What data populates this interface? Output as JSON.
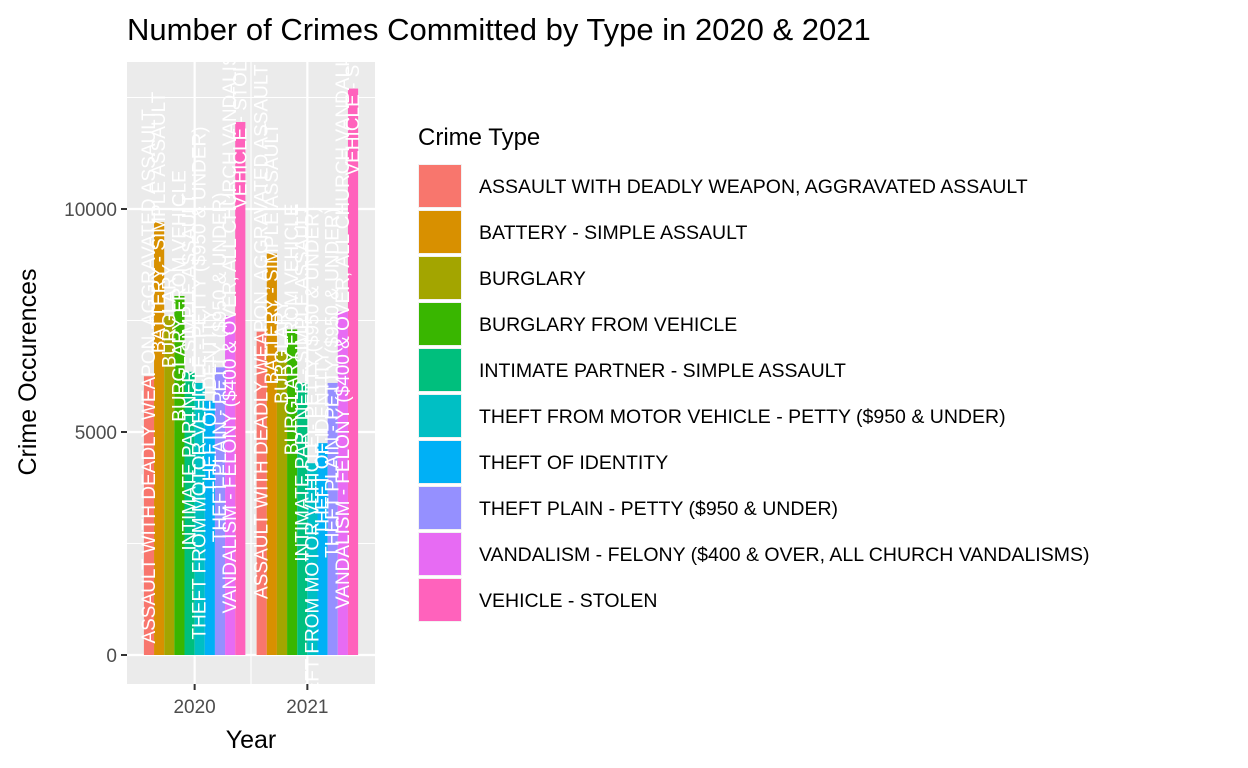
{
  "chart_data": {
    "type": "bar",
    "title": "Number of Crimes Committed by Type in 2020 & 2021",
    "xlabel": "Year",
    "ylabel": "Crime Occurences",
    "categories": [
      "2020",
      "2021"
    ],
    "ylim": [
      -600,
      13000
    ],
    "yticks": [
      0,
      5000,
      10000
    ],
    "grid": true,
    "legend_title": "Crime Type",
    "legend_position": "right",
    "series": [
      {
        "name": "ASSAULT WITH DEADLY WEAPON, AGGRAVATED ASSAULT",
        "color": "#F8766D",
        "values": [
          6250,
          7250
        ]
      },
      {
        "name": "BATTERY - SIMPLE ASSAULT",
        "color": "#D89000",
        "values": [
          9700,
          9000
        ]
      },
      {
        "name": "BURGLARY",
        "color": "#A3A500",
        "values": [
          7600,
          6800
        ]
      },
      {
        "name": "BURGLARY FROM VEHICLE",
        "color": "#39B600",
        "values": [
          8050,
          7300
        ]
      },
      {
        "name": "INTIMATE PARTNER - SIMPLE ASSAULT",
        "color": "#00BF7D",
        "values": [
          6350,
          6100
        ]
      },
      {
        "name": "THEFT FROM MOTOR VEHICLE - PETTY ($950 & UNDER)",
        "color": "#00BFC4",
        "values": [
          6100,
          4300
        ]
      },
      {
        "name": "THEFT OF IDENTITY",
        "color": "#00B0F6",
        "values": [
          5700,
          4750
        ]
      },
      {
        "name": "THEFT PLAIN - PETTY ($950 & UNDER)",
        "color": "#9590FF",
        "values": [
          6450,
          6100
        ]
      },
      {
        "name": "VANDALISM - FELONY ($400 & OVER, ALL CHURCH VANDALISMS)",
        "color": "#E76BF3",
        "values": [
          7600,
          7700
        ]
      },
      {
        "name": "VEHICLE - STOLEN",
        "color": "#FF62BC",
        "values": [
          11950,
          12700
        ]
      }
    ]
  }
}
